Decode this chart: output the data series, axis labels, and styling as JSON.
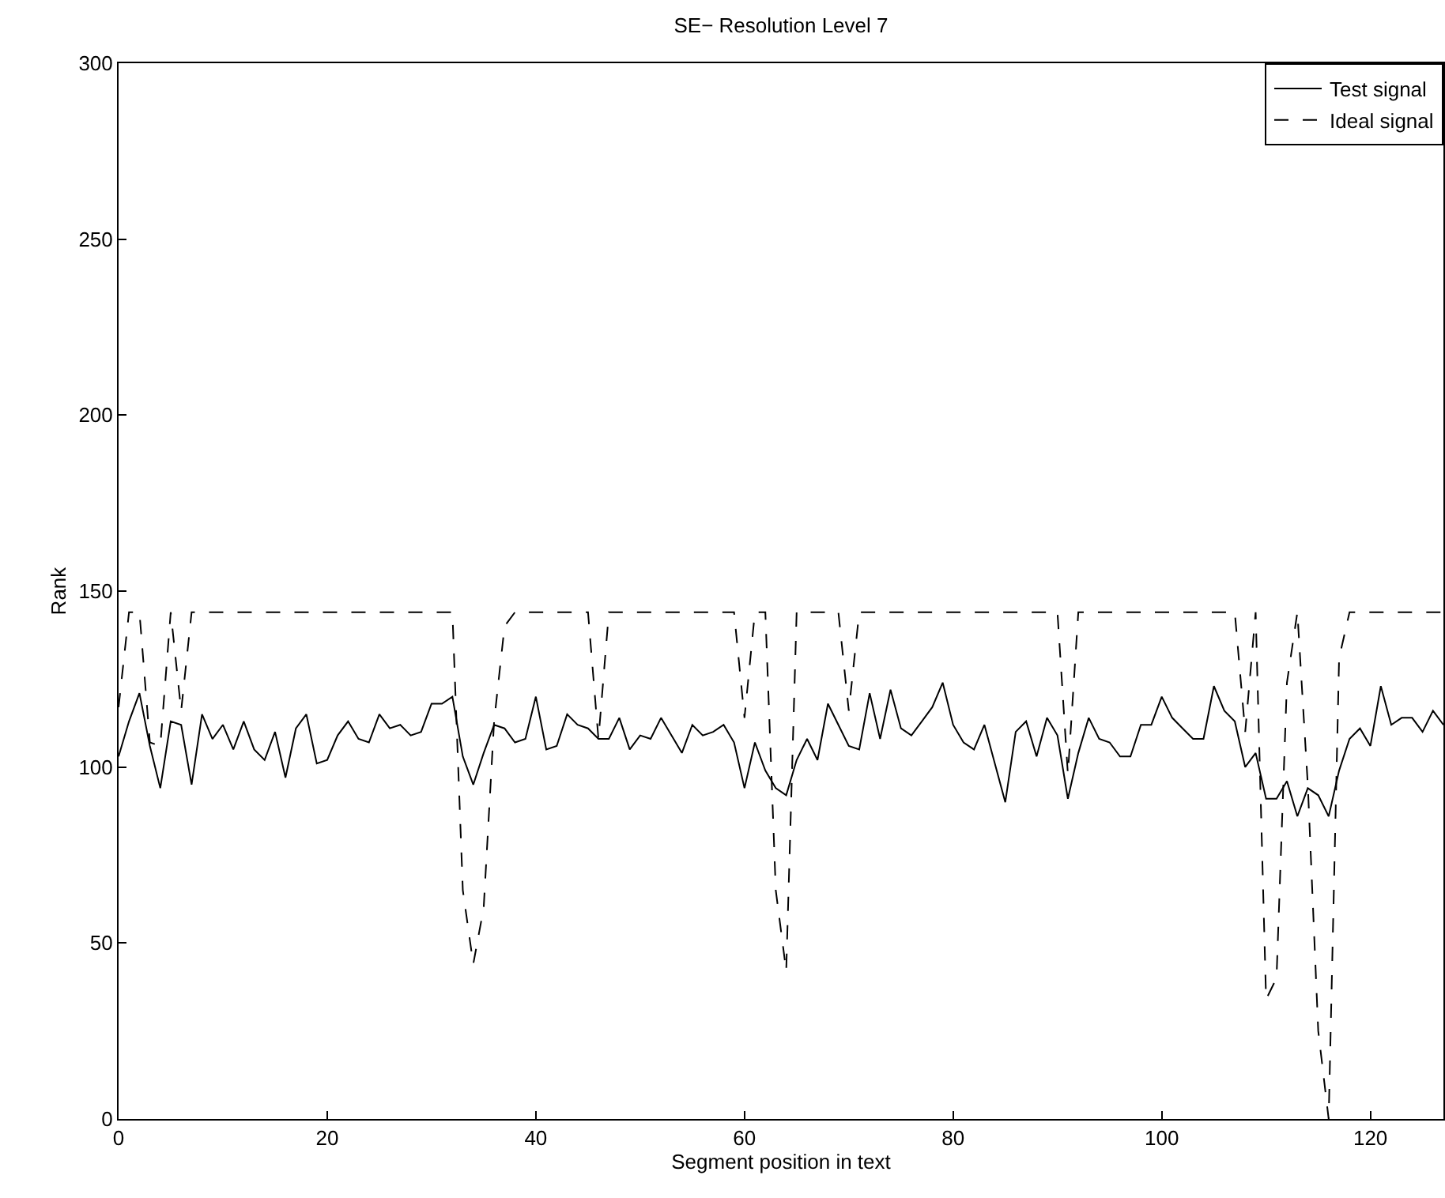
{
  "chart_data": {
    "type": "line",
    "title": "SE− Resolution Level 7",
    "xlabel": "Segment position in text",
    "ylabel": "Rank",
    "x": [
      0,
      1,
      2,
      3,
      4,
      5,
      6,
      7,
      8,
      9,
      10,
      11,
      12,
      13,
      14,
      15,
      16,
      17,
      18,
      19,
      20,
      21,
      22,
      23,
      24,
      25,
      26,
      27,
      28,
      29,
      30,
      31,
      32,
      33,
      34,
      35,
      36,
      37,
      38,
      39,
      40,
      41,
      42,
      43,
      44,
      45,
      46,
      47,
      48,
      49,
      50,
      51,
      52,
      53,
      54,
      55,
      56,
      57,
      58,
      59,
      60,
      61,
      62,
      63,
      64,
      65,
      66,
      67,
      68,
      69,
      70,
      71,
      72,
      73,
      74,
      75,
      76,
      77,
      78,
      79,
      80,
      81,
      82,
      83,
      84,
      85,
      86,
      87,
      88,
      89,
      90,
      91,
      92,
      93,
      94,
      95,
      96,
      97,
      98,
      99,
      100,
      101,
      102,
      103,
      104,
      105,
      106,
      107,
      108,
      109,
      110,
      111,
      112,
      113,
      114,
      115,
      116,
      117,
      118,
      119,
      120,
      121,
      122,
      123,
      124,
      125,
      126,
      127
    ],
    "series": [
      {
        "name": "Test signal",
        "color": "#000000",
        "line_style": "solid",
        "values": [
          103,
          113,
          121,
          106,
          94,
          113,
          112,
          95,
          115,
          108,
          112,
          105,
          113,
          105,
          102,
          110,
          97,
          111,
          115,
          101,
          102,
          109,
          113,
          108,
          107,
          115,
          111,
          112,
          109,
          110,
          118,
          118,
          120,
          103,
          95,
          104,
          112,
          111,
          107,
          108,
          120,
          105,
          106,
          115,
          112,
          111,
          108,
          108,
          114,
          105,
          109,
          108,
          114,
          109,
          104,
          112,
          109,
          110,
          112,
          107,
          94,
          107,
          99,
          94,
          92,
          102,
          108,
          102,
          118,
          112,
          106,
          105,
          121,
          108,
          122,
          111,
          109,
          113,
          117,
          124,
          112,
          107,
          105,
          112,
          101,
          90,
          110,
          113,
          103,
          114,
          109,
          91,
          104,
          114,
          108,
          107,
          103,
          103,
          112,
          112,
          120,
          114,
          111,
          108,
          108,
          123,
          116,
          113,
          100,
          104,
          91,
          91,
          96,
          86,
          94,
          92,
          86,
          99,
          108,
          111,
          106,
          123,
          112,
          114,
          114,
          110,
          116,
          112
        ]
      },
      {
        "name": "Ideal signal",
        "color": "#000000",
        "line_style": "dashed",
        "values": [
          117,
          144,
          144,
          107,
          106,
          144,
          116,
          144,
          144,
          144,
          144,
          144,
          144,
          144,
          144,
          144,
          144,
          144,
          144,
          144,
          144,
          144,
          144,
          144,
          144,
          144,
          144,
          144,
          144,
          144,
          144,
          144,
          144,
          65,
          44,
          60,
          113,
          140,
          144,
          144,
          144,
          144,
          144,
          144,
          144,
          144,
          108,
          144,
          144,
          144,
          144,
          144,
          144,
          144,
          144,
          144,
          144,
          144,
          144,
          144,
          114,
          144,
          144,
          65,
          42,
          144,
          144,
          144,
          144,
          144,
          116,
          144,
          144,
          144,
          144,
          144,
          144,
          144,
          144,
          144,
          144,
          144,
          144,
          144,
          144,
          144,
          144,
          144,
          144,
          144,
          144,
          98,
          144,
          144,
          144,
          144,
          144,
          144,
          144,
          144,
          144,
          144,
          144,
          144,
          144,
          144,
          144,
          144,
          110,
          144,
          34,
          40,
          124,
          144,
          95,
          25,
          0,
          131,
          144,
          144,
          144,
          144,
          144,
          144,
          144,
          144,
          144,
          144
        ]
      }
    ],
    "xlim": [
      0,
      127
    ],
    "xticks": [
      0,
      20,
      40,
      60,
      80,
      100,
      120
    ],
    "ylim": [
      0,
      300
    ],
    "yticks": [
      0,
      50,
      100,
      150,
      200,
      250,
      300
    ],
    "legend": "top right",
    "marker": "none"
  }
}
